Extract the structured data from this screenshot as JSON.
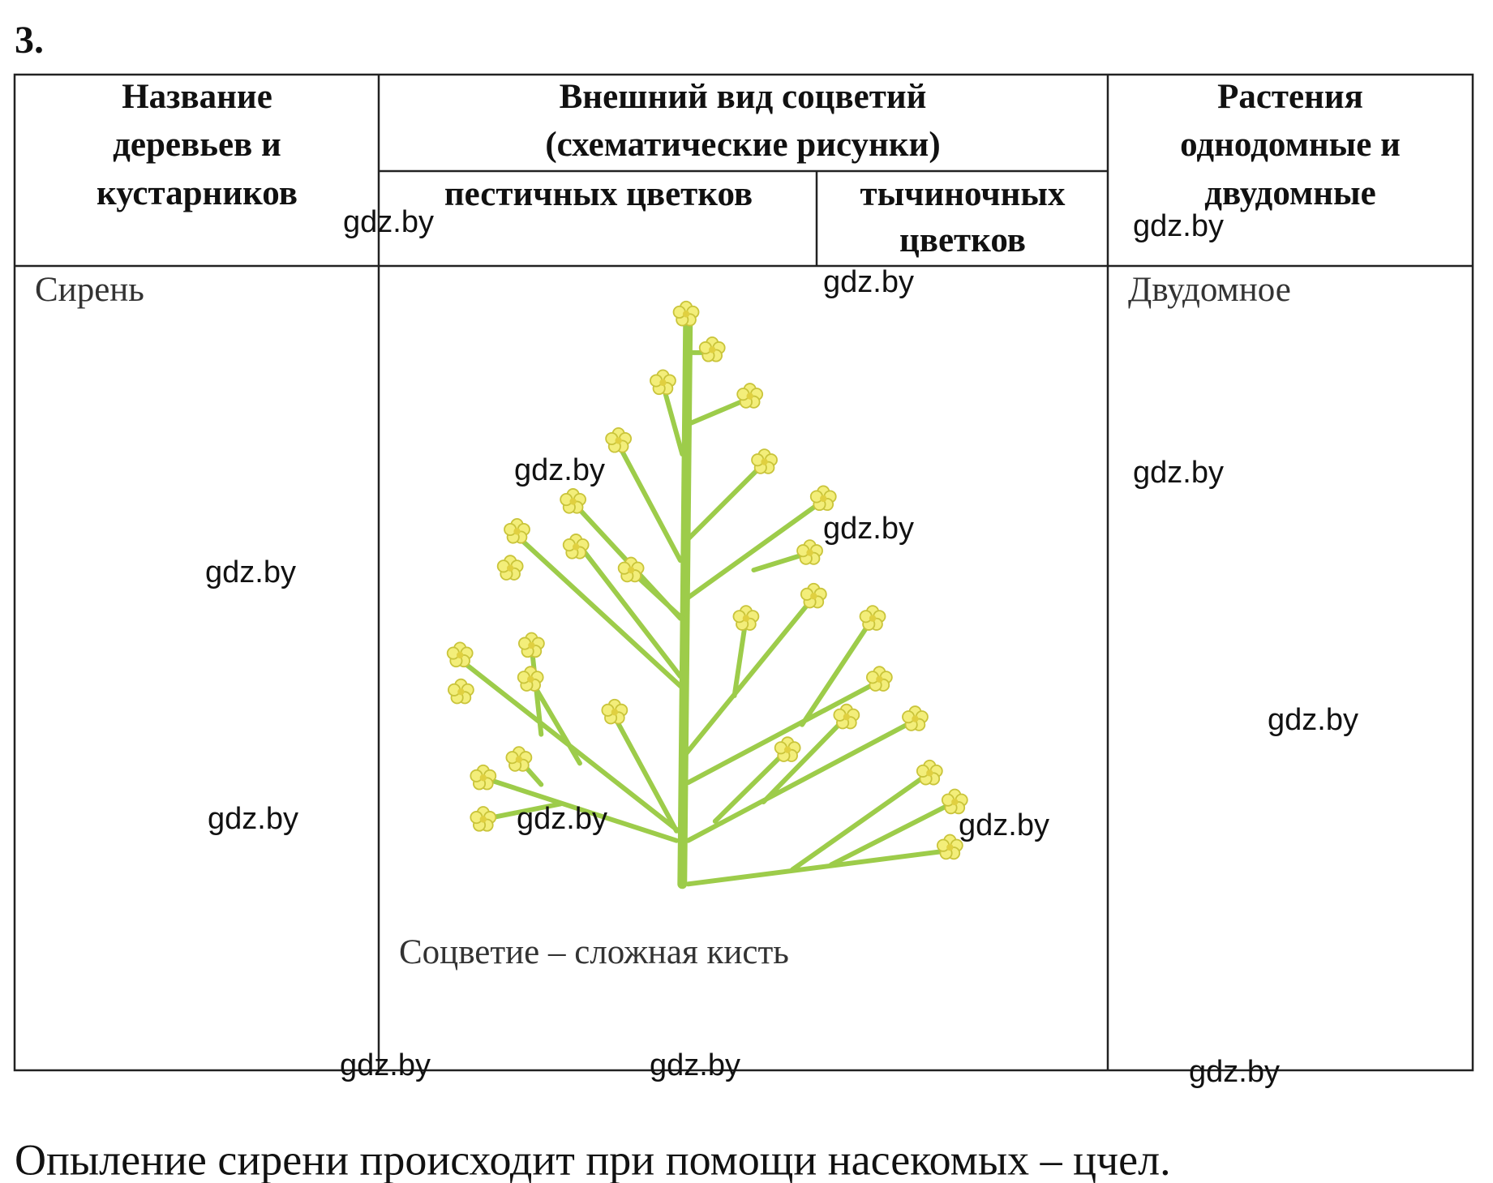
{
  "task_number": "3.",
  "table": {
    "headers": {
      "name": [
        "Название",
        "деревьев и",
        "кустарников"
      ],
      "appearance": [
        "Внешний вид соцветий",
        "(схематические рисунки)"
      ],
      "pistillate": "пестичных цветков",
      "staminate": [
        "тычиночных",
        "цветков"
      ],
      "plants": [
        "Растения",
        "однодомные и",
        "двудомные"
      ]
    },
    "rows": [
      {
        "name": "Сирень",
        "caption": "Соцветие – сложная кисть",
        "type": "Двудомное"
      }
    ]
  },
  "footer": "Опыление сирени происходит при помощи насекомых – цчел.",
  "watermarks": [
    "gdz.by",
    "gdz.by",
    "gdz.by",
    "gdz.by",
    "gdz.by",
    "gdz.by",
    "gdz.by",
    "gdz.by",
    "gdz.by",
    "gdz.by",
    "gdz.by",
    "gdz.by",
    "gdz.by",
    "gdz.by"
  ]
}
